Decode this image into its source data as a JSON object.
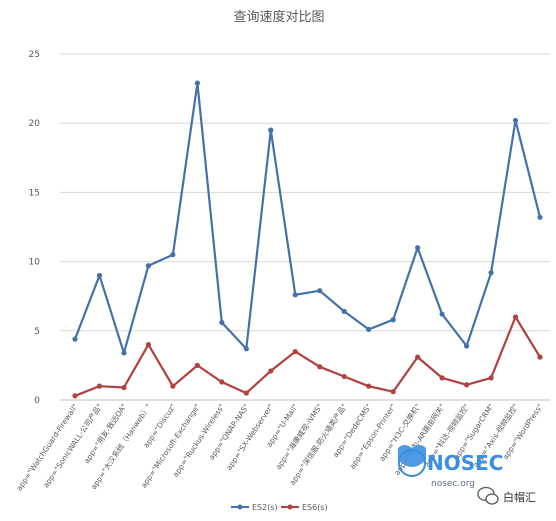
{
  "chart_data": {
    "type": "line",
    "title": "查询速度对比图",
    "xlabel": "",
    "ylabel": "",
    "ylim": [
      0,
      25
    ],
    "yticks": [
      0,
      5,
      10,
      15,
      20,
      25
    ],
    "grid": true,
    "legend_position": "bottom",
    "categories": [
      "app=\"WatchGuard-Firewall\"",
      "app=\"SonicWALL-公司产品\"",
      "app=\"用友-致远OA\"",
      "app=\"大汉系统（Hanweb）\"",
      "app=\"Discuz\"",
      "app=\"Microsoft-Exchange\"",
      "app=\"Ruckus-Wireless\"",
      "app=\"QNAP-NAS\"",
      "app=\"SX-Webserver\"",
      "app=\"U-Mail\"",
      "app=\"海康威视-iVMS\"",
      "app=\"深信服-防火墙类产品\"",
      "app=\"DedeCMS\"",
      "app=\"Epson-Printer\"",
      "app=\"H3C-交换机\"",
      "app=\"华为-AR路由网关\"",
      "app=\"科达-视频监控\"",
      "app=\"SugarCRM\"",
      "app=\"Axis-视频监控\"",
      "app=\"WordPress\""
    ],
    "series": [
      {
        "name": "ES2(s)",
        "color": "#4472a8",
        "values": [
          4.4,
          9.0,
          3.4,
          9.7,
          10.5,
          22.9,
          5.6,
          3.7,
          19.5,
          7.6,
          7.9,
          6.4,
          5.1,
          5.8,
          11.0,
          6.2,
          3.9,
          9.2,
          20.2,
          13.2
        ]
      },
      {
        "name": "ES6(s)",
        "color": "#b2403e",
        "values": [
          0.3,
          1.0,
          0.9,
          4.0,
          1.0,
          2.5,
          1.3,
          0.5,
          2.1,
          3.5,
          2.4,
          1.7,
          1.0,
          0.6,
          3.1,
          1.6,
          1.1,
          1.6,
          6.0,
          3.1
        ]
      }
    ]
  },
  "watermark": {
    "logo_text": "NOSEC",
    "logo_domain": "nosec.org",
    "account": "白帽汇",
    "logo_color": "#3b8fe0"
  }
}
